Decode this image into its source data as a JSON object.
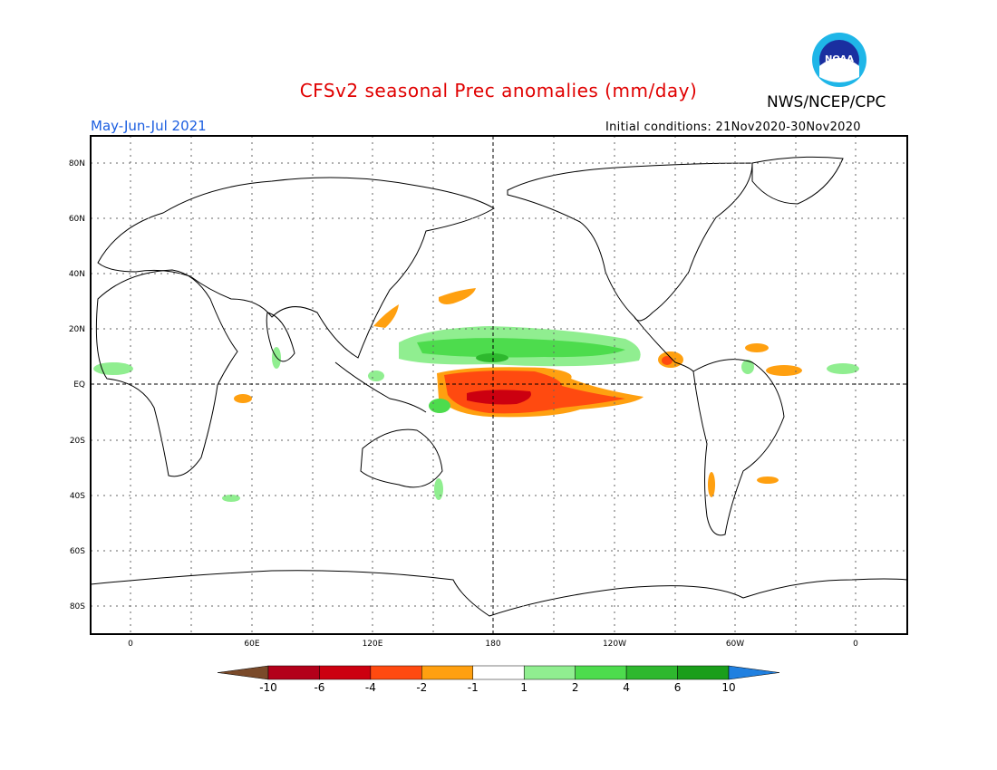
{
  "header": {
    "title": "CFSv2 seasonal Prec anomalies (mm/day)",
    "agency": "NWS/NCEP/CPC",
    "season": "May-Jun-Jul 2021",
    "initial_conditions": "Initial conditions: 21Nov2020-30Nov2020",
    "logo_text": "NOAA"
  },
  "axes": {
    "lat_ticks": [
      "80N",
      "60N",
      "40N",
      "20N",
      "EQ",
      "20S",
      "40S",
      "60S",
      "80S"
    ],
    "lon_ticks": [
      "0",
      "60E",
      "120E",
      "180",
      "120W",
      "60W",
      "0"
    ]
  },
  "colorbar": {
    "labels": [
      "-10",
      "-6",
      "-4",
      "-2",
      "-1",
      "1",
      "2",
      "4",
      "6",
      "10"
    ],
    "colors": [
      "#7a4a2a",
      "#b3001a",
      "#cc0010",
      "#ff4a10",
      "#ffa010",
      "#ffffff",
      "#90ee90",
      "#4ddc4d",
      "#2eb82e",
      "#1a9e1a",
      "#2080e0"
    ]
  },
  "colors": {
    "title": "#e00000",
    "season": "#1a5de0",
    "land_outline": "#000000"
  }
}
